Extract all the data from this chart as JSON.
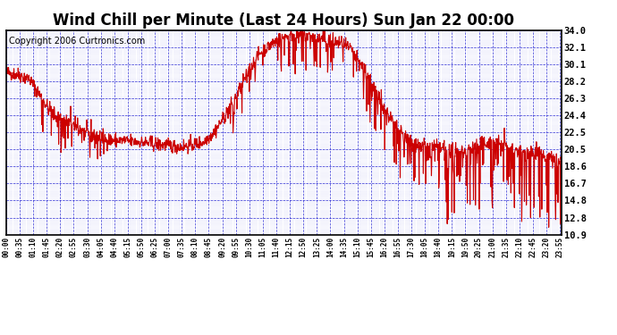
{
  "title": "Wind Chill per Minute (Last 24 Hours) Sun Jan 22 00:00",
  "copyright": "Copyright 2006 Curtronics.com",
  "yticks": [
    10.9,
    12.8,
    14.8,
    16.7,
    18.6,
    20.5,
    22.5,
    24.4,
    26.3,
    28.2,
    30.1,
    32.1,
    34.0
  ],
  "ymin": 10.9,
  "ymax": 34.0,
  "line_color": "#cc0000",
  "grid_color": "#0000cc",
  "bg_color": "#ffffff",
  "title_fontsize": 12,
  "copyright_fontsize": 7,
  "base_curve": [
    [
      0.0,
      29.2
    ],
    [
      0.5,
      29.0
    ],
    [
      1.0,
      28.5
    ],
    [
      1.5,
      26.5
    ],
    [
      2.0,
      24.5
    ],
    [
      2.5,
      23.8
    ],
    [
      3.0,
      23.2
    ],
    [
      3.5,
      22.3
    ],
    [
      4.0,
      21.8
    ],
    [
      4.5,
      21.6
    ],
    [
      5.0,
      21.5
    ],
    [
      5.5,
      21.4
    ],
    [
      6.0,
      21.3
    ],
    [
      6.5,
      21.1
    ],
    [
      7.0,
      21.0
    ],
    [
      7.5,
      20.8
    ],
    [
      8.0,
      21.0
    ],
    [
      8.5,
      21.3
    ],
    [
      9.0,
      22.5
    ],
    [
      9.5,
      24.5
    ],
    [
      10.0,
      26.8
    ],
    [
      10.5,
      29.5
    ],
    [
      11.0,
      31.5
    ],
    [
      11.5,
      32.5
    ],
    [
      12.0,
      33.2
    ],
    [
      12.5,
      33.5
    ],
    [
      13.0,
      33.4
    ],
    [
      13.5,
      33.0
    ],
    [
      14.0,
      32.8
    ],
    [
      14.5,
      32.5
    ],
    [
      15.0,
      31.5
    ],
    [
      15.5,
      29.5
    ],
    [
      16.0,
      27.0
    ],
    [
      16.5,
      24.5
    ],
    [
      17.0,
      22.5
    ],
    [
      17.5,
      21.5
    ],
    [
      18.0,
      21.0
    ],
    [
      18.5,
      20.8
    ],
    [
      19.0,
      20.5
    ],
    [
      19.5,
      20.3
    ],
    [
      20.0,
      20.5
    ],
    [
      20.5,
      21.0
    ],
    [
      21.0,
      21.5
    ],
    [
      21.5,
      21.0
    ],
    [
      22.0,
      20.5
    ],
    [
      22.5,
      20.2
    ],
    [
      23.0,
      20.0
    ],
    [
      23.5,
      19.5
    ],
    [
      24.0,
      19.0
    ]
  ],
  "spike_seed": 42,
  "n_minutes": 1440
}
